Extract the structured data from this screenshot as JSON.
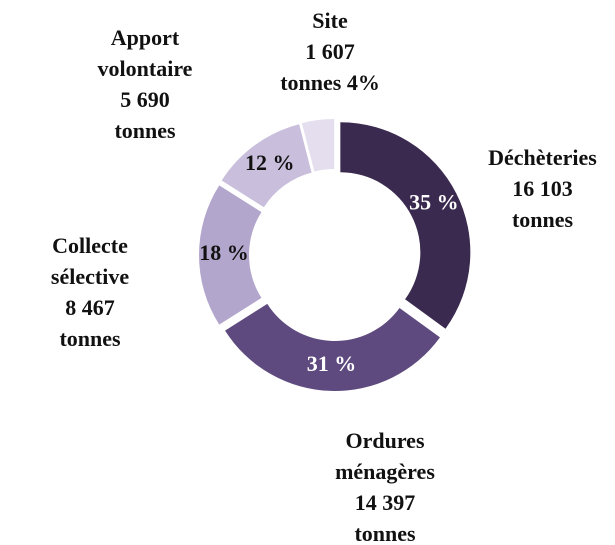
{
  "chart_data": {
    "type": "donut",
    "categories": [
      "Déchèteries",
      "Ordures ménagères",
      "Collecte sélective",
      "Apport volontaire",
      "Site"
    ],
    "values": [
      35,
      31,
      18,
      12,
      4
    ],
    "value_labels": [
      "35 %",
      "31 %",
      "18 %",
      "12 %",
      "4%"
    ],
    "tonnages": [
      16103,
      14397,
      8467,
      5690,
      1607
    ],
    "tonnage_labels": [
      "16 103",
      "14 397",
      "8 467",
      "5 690",
      "1 607"
    ],
    "unit": "tonnes",
    "colors": [
      "#3b2a4f",
      "#5e4a7e",
      "#b3a6cc",
      "#c9bfdc",
      "#e4deee"
    ],
    "annotation": "35 %"
  }
}
